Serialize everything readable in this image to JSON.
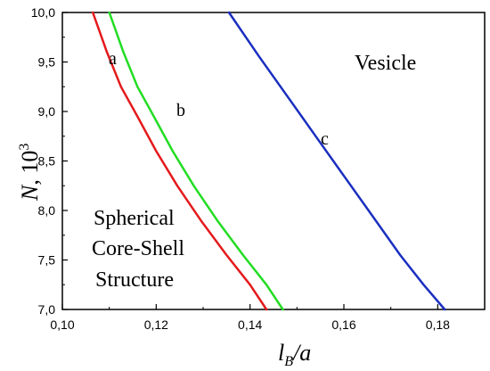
{
  "chart_data": {
    "type": "line",
    "xlabel": {
      "main": "l",
      "sub": "B",
      "rest": "/a"
    },
    "ylabel": {
      "main": "N",
      "rest": ", 10",
      "sup": "3"
    },
    "xlim": [
      0.1,
      0.19
    ],
    "ylim": [
      7.0,
      10.0
    ],
    "x_ticks": [
      "0,10",
      "0,12",
      "0,14",
      "0,16",
      "0,18"
    ],
    "x_tick_values": [
      0.1,
      0.12,
      0.14,
      0.16,
      0.18
    ],
    "y_ticks": [
      "7,0",
      "7,5",
      "8,0",
      "8,5",
      "9,0",
      "9,5",
      "10,0"
    ],
    "y_tick_values": [
      7.0,
      7.5,
      8.0,
      8.5,
      9.0,
      9.5,
      10.0
    ],
    "grid": false,
    "series": [
      {
        "name": "a",
        "color": "#e41a1c",
        "x": [
          0.1065,
          0.1095,
          0.1125,
          0.116,
          0.12,
          0.1245,
          0.1295,
          0.135,
          0.14,
          0.1435
        ],
        "y": [
          10.0,
          9.6,
          9.25,
          8.95,
          8.6,
          8.25,
          7.9,
          7.55,
          7.25,
          7.0
        ]
      },
      {
        "name": "b",
        "color": "#22dd22",
        "x": [
          0.11,
          0.113,
          0.116,
          0.1195,
          0.1235,
          0.128,
          0.133,
          0.1385,
          0.1435,
          0.147
        ],
        "y": [
          10.0,
          9.6,
          9.25,
          8.95,
          8.6,
          8.25,
          7.9,
          7.55,
          7.25,
          7.0
        ]
      },
      {
        "name": "c",
        "color": "#1a2fbf",
        "x": [
          0.1355,
          0.142,
          0.148,
          0.154,
          0.16,
          0.166,
          0.172,
          0.177,
          0.1815
        ],
        "y": [
          10.0,
          9.55,
          9.15,
          8.75,
          8.35,
          7.95,
          7.55,
          7.25,
          7.0
        ]
      }
    ],
    "annotations": {
      "label_a": "a",
      "label_b": "b",
      "label_c": "c",
      "vesicle": "Vesicle",
      "core_line1": "Spherical",
      "core_line2": "Core-Shell",
      "core_line3": "Structure"
    }
  }
}
